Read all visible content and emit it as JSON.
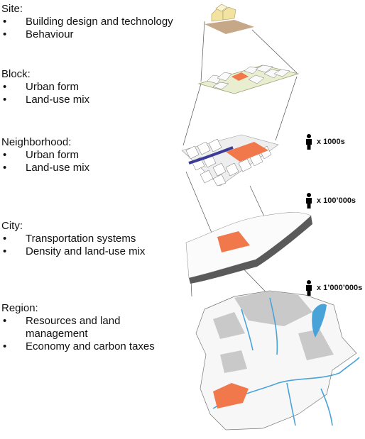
{
  "scales": [
    {
      "title": "Site:",
      "items": [
        "Building design and technology",
        "Behaviour"
      ]
    },
    {
      "title": "Block:",
      "items": [
        "Urban form",
        "Land-use mix"
      ]
    },
    {
      "title": "Neighborhood:",
      "items": [
        "Urban form",
        "Land-use mix"
      ]
    },
    {
      "title": "City:",
      "items": [
        "Transportation systems",
        "Density and land-use mix"
      ]
    },
    {
      "title": "Region:",
      "items": [
        "Resources and land management",
        "Economy and carbon taxes"
      ]
    }
  ],
  "population": [
    "x 1000s",
    "x 100’000s",
    "x 1’000’000s"
  ],
  "bullet": "•",
  "colors": {
    "highlight": "#f0784a",
    "water": "#4aa3d8",
    "transit": "#3b3b9a",
    "city_edge": "#5a5a5a",
    "block_base": "#e9eed0",
    "site_base": "#c6a888"
  }
}
